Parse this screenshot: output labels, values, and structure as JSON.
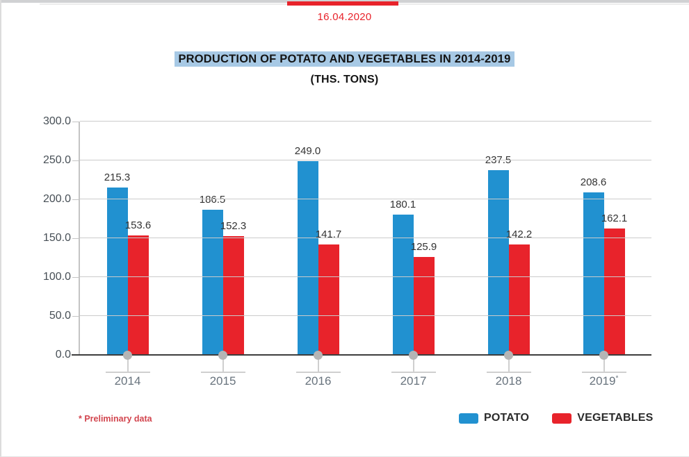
{
  "page": {
    "top_date": "16.04.2020",
    "footnote": "* Preliminary data"
  },
  "chart_data": {
    "type": "bar",
    "title": "PRODUCTION OF POTATO AND VEGETABLES IN 2014-2019",
    "subtitle": "(THS. TONS)",
    "categories": [
      "2014",
      "2015",
      "2016",
      "2017",
      "2018",
      "2019*"
    ],
    "series": [
      {
        "name": "POTATO",
        "color": "#2191d0",
        "values": [
          215.3,
          186.5,
          249.0,
          180.1,
          237.5,
          208.6
        ]
      },
      {
        "name": "VEGETABLES",
        "color": "#e8232b",
        "values": [
          153.6,
          152.3,
          141.7,
          125.9,
          142.2,
          162.1
        ]
      }
    ],
    "ylim": [
      0,
      300
    ],
    "ytick_step": 50,
    "value_label_decimals": 1,
    "grid": true,
    "legend_position": "bottom-right",
    "footnote_marker": "*"
  },
  "colors": {
    "accent_red": "#e8232b",
    "title_highlight": "#a7c9e5",
    "footnote_red": "#d2454e",
    "potato_blue": "#2191d0",
    "vegetables_red": "#e8232b"
  }
}
